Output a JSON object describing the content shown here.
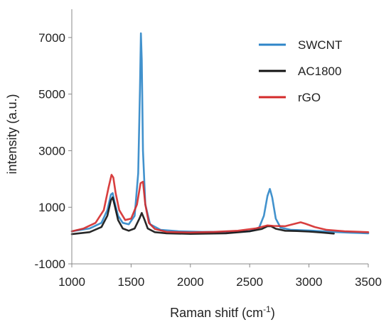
{
  "chart_data": {
    "type": "line",
    "xlabel": "Raman shitf (cm",
    "xlabel_superscript": "-1",
    "xlabel_suffix": ")",
    "ylabel": "intensity (a.u.)",
    "xlim": [
      1000,
      3500
    ],
    "ylim": [
      -1000,
      8000
    ],
    "xticks": [
      1000,
      1500,
      2000,
      2500,
      3000,
      3500
    ],
    "yticks": [
      -1000,
      1000,
      3000,
      5000,
      7000
    ],
    "grid": false,
    "legend_position": "top-right",
    "series": [
      {
        "name": "SWCNT",
        "color": "#2e86c8",
        "x": [
          1000,
          1150,
          1250,
          1300,
          1330,
          1345,
          1360,
          1390,
          1430,
          1480,
          1530,
          1560,
          1575,
          1583,
          1590,
          1600,
          1620,
          1660,
          1750,
          1900,
          2100,
          2300,
          2500,
          2580,
          2620,
          2650,
          2670,
          2690,
          2720,
          2760,
          2850,
          3000,
          3200,
          3350,
          3500
        ],
        "y": [
          150,
          250,
          450,
          900,
          1450,
          1500,
          1200,
          700,
          450,
          400,
          700,
          2200,
          5200,
          7150,
          6200,
          3000,
          1100,
          400,
          200,
          150,
          130,
          130,
          150,
          280,
          700,
          1400,
          1650,
          1350,
          600,
          280,
          200,
          180,
          130,
          100,
          80
        ]
      },
      {
        "name": "AC1800",
        "color": "#111111",
        "x": [
          1000,
          1150,
          1250,
          1300,
          1330,
          1345,
          1360,
          1390,
          1430,
          1480,
          1530,
          1570,
          1590,
          1610,
          1640,
          1700,
          1800,
          2000,
          2300,
          2500,
          2600,
          2650,
          2680,
          2720,
          2800,
          2900,
          3000,
          3100,
          3210
        ],
        "y": [
          50,
          120,
          300,
          700,
          1250,
          1350,
          1100,
          550,
          250,
          170,
          250,
          600,
          800,
          600,
          250,
          120,
          80,
          60,
          80,
          150,
          230,
          330,
          330,
          240,
          170,
          160,
          140,
          110,
          70
        ]
      },
      {
        "name": "rGO",
        "color": "#d42a2a",
        "x": [
          1000,
          1100,
          1200,
          1270,
          1310,
          1335,
          1350,
          1370,
          1400,
          1450,
          1500,
          1550,
          1580,
          1600,
          1620,
          1650,
          1700,
          1800,
          2000,
          2200,
          2400,
          2550,
          2650,
          2700,
          2800,
          2900,
          2930,
          2970,
          3050,
          3150,
          3300,
          3500
        ],
        "y": [
          150,
          250,
          450,
          900,
          1700,
          2150,
          2050,
          1500,
          900,
          550,
          600,
          1100,
          1850,
          1900,
          1100,
          450,
          230,
          130,
          110,
          130,
          170,
          250,
          360,
          340,
          330,
          440,
          470,
          420,
          300,
          200,
          150,
          120
        ]
      }
    ]
  }
}
